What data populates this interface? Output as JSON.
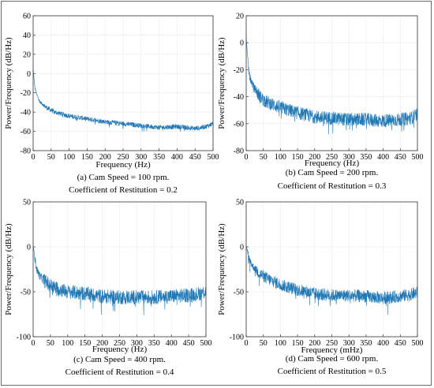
{
  "chart_data": [
    {
      "type": "line",
      "xlabel": "Frequency (Hz)",
      "ylabel": "Power/Frequency (dB/Hz)",
      "xlim": [
        0,
        500
      ],
      "ylim": [
        -80,
        60
      ],
      "xticks": [
        0,
        50,
        100,
        150,
        200,
        250,
        300,
        350,
        400,
        450,
        500
      ],
      "yticks": [
        -80,
        -60,
        -40,
        -20,
        0,
        20,
        40,
        60
      ],
      "grid": true,
      "caption_line1": "(a) Cam Speed = 100 rpm.",
      "caption_line2": "Coefficient of Restitution = 0.2",
      "color": "#1f77b4",
      "series": [
        {
          "x": [
            0,
            5,
            10,
            20,
            40,
            60,
            100,
            150,
            200,
            250,
            300,
            350,
            400,
            450,
            480,
            500
          ],
          "y": [
            5,
            -15,
            -22,
            -30,
            -36,
            -40,
            -44,
            -47,
            -50,
            -52,
            -54,
            -56,
            -55,
            -57,
            -55,
            -52
          ],
          "noise": 2.5
        }
      ]
    },
    {
      "type": "line",
      "xlabel": "Frequency (Hz)",
      "ylabel": "Power/Frequency (dB/Hz)",
      "xlim": [
        0,
        500
      ],
      "ylim": [
        -80,
        20
      ],
      "xticks": [
        0,
        50,
        100,
        150,
        200,
        250,
        300,
        350,
        400,
        450,
        500
      ],
      "yticks": [
        -80,
        -60,
        -40,
        -20,
        0,
        20
      ],
      "grid": true,
      "caption_line1": "(b) Cam Speed = 200 rpm.",
      "caption_line2": "Coefficient of Restitution = 0.3",
      "color": "#1f77b4",
      "series": [
        {
          "x": [
            0,
            5,
            10,
            20,
            40,
            60,
            100,
            150,
            200,
            250,
            300,
            350,
            400,
            450,
            480,
            500
          ],
          "y": [
            5,
            -15,
            -25,
            -32,
            -40,
            -44,
            -48,
            -52,
            -55,
            -56,
            -57,
            -57,
            -58,
            -57,
            -56,
            -53
          ],
          "noise": 5
        }
      ]
    },
    {
      "type": "line",
      "xlabel": "Frequency (Hz)",
      "ylabel": "Power/Frequency (dB/Hz)",
      "xlim": [
        0,
        500
      ],
      "ylim": [
        -100,
        50
      ],
      "xticks": [
        0,
        50,
        100,
        150,
        200,
        250,
        300,
        350,
        400,
        450,
        500
      ],
      "yticks": [
        -100,
        -50,
        0,
        50
      ],
      "grid": true,
      "caption_line1": "(c) Cam Speed = 400 rpm.",
      "caption_line2": "Coefficient of Restitution = 0.4",
      "color": "#1f77b4",
      "series": [
        {
          "x": [
            0,
            5,
            10,
            20,
            40,
            60,
            100,
            150,
            200,
            250,
            300,
            350,
            400,
            450,
            480,
            500
          ],
          "y": [
            2,
            -12,
            -25,
            -33,
            -40,
            -45,
            -50,
            -52,
            -55,
            -56,
            -56,
            -56,
            -55,
            -54,
            -52,
            -50
          ],
          "noise": 8
        }
      ]
    },
    {
      "type": "line",
      "xlabel": "Frequency (mHz)",
      "ylabel": "Power/Frequency (dB/Hz)",
      "xlim": [
        0,
        500
      ],
      "ylim": [
        -100,
        50
      ],
      "xticks": [
        0,
        50,
        100,
        150,
        200,
        250,
        300,
        350,
        400,
        450,
        500
      ],
      "yticks": [
        -100,
        -50,
        0,
        50
      ],
      "grid": true,
      "caption_line1": "(d) Cam Speed = 600 rpm.",
      "caption_line2": "Coefficient of Restitution = 0.5",
      "color": "#1f77b4",
      "series": [
        {
          "x": [
            0,
            5,
            10,
            20,
            40,
            60,
            100,
            150,
            200,
            250,
            300,
            350,
            400,
            450,
            480,
            500
          ],
          "y": [
            2,
            -8,
            -15,
            -22,
            -30,
            -35,
            -42,
            -48,
            -52,
            -54,
            -54,
            -55,
            -57,
            -55,
            -53,
            -51
          ],
          "noise": 7
        }
      ]
    }
  ]
}
